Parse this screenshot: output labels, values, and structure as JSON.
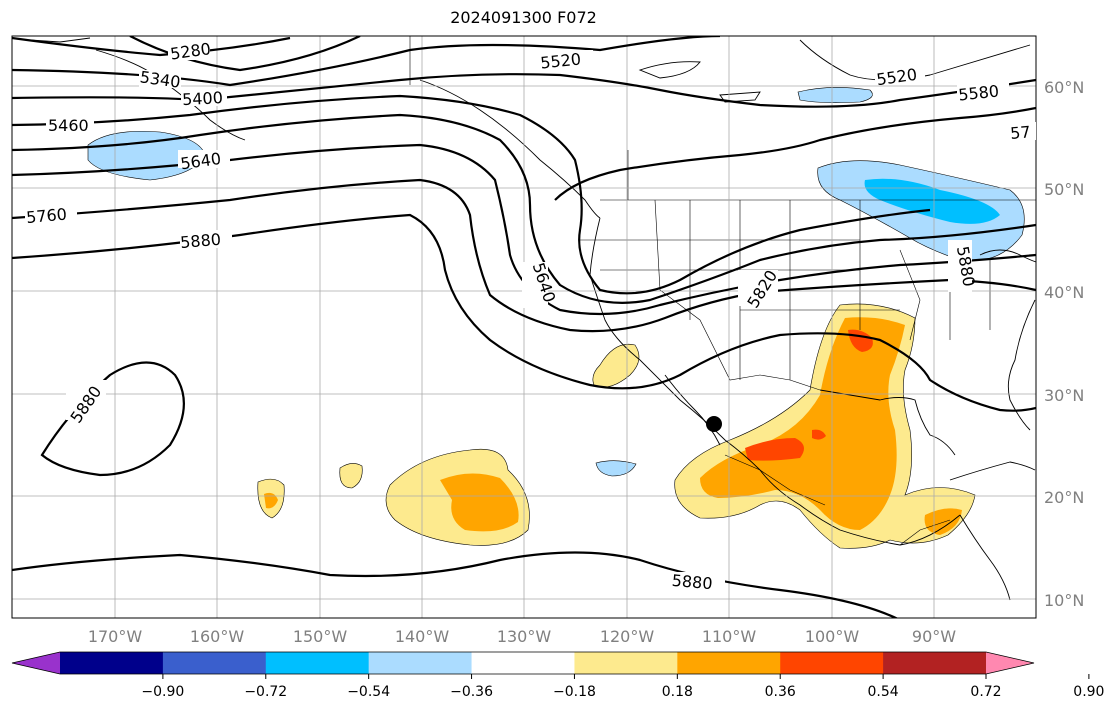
{
  "title": "2024091300 F072",
  "map": {
    "latitude_labels": [
      "60°N",
      "50°N",
      "40°N",
      "30°N",
      "20°N",
      "10°N"
    ],
    "longitude_labels": [
      "170°W",
      "160°W",
      "150°W",
      "140°W",
      "130°W",
      "120°W",
      "110°W",
      "100°W",
      "90°W"
    ],
    "contour_labels": [
      "5280",
      "5340",
      "5400",
      "5460",
      "5520",
      "5520",
      "5580",
      "5640",
      "5640",
      "5760",
      "5820",
      "5880",
      "5880",
      "5880",
      "5880",
      "57"
    ],
    "marker": "black-dot",
    "shading_colors": {
      "light_yellow": "#fdea8e",
      "orange": "#ffa500",
      "red_orange": "#ff4500",
      "light_blue": "#abdcff",
      "blue": "#00bfff"
    }
  },
  "colorbar": {
    "ticks": [
      "−0.90",
      "−0.72",
      "−0.54",
      "−0.36",
      "−0.18",
      "0.18",
      "0.36",
      "0.54",
      "0.72",
      "0.90"
    ],
    "colors": [
      "#9932cc",
      "#00008b",
      "#3a5fcd",
      "#00bfff",
      "#abdcff",
      "#ffffff",
      "#fdea8e",
      "#ffa500",
      "#ff4500",
      "#b22222",
      "#ff88b0"
    ]
  }
}
